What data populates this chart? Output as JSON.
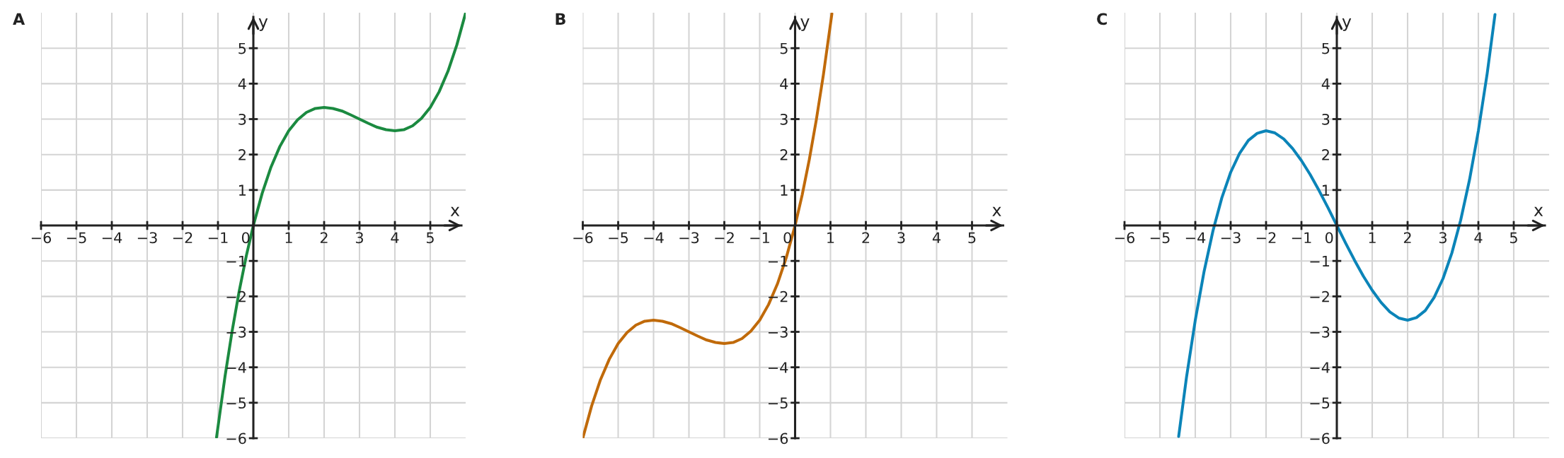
{
  "chart_data": [
    {
      "type": "line",
      "title": "A",
      "xlabel": "x",
      "ylabel": "y",
      "xlim": [
        -6,
        6
      ],
      "ylim": [
        -6,
        6
      ],
      "xticks": [
        {
          "value": -6,
          "label": "−6"
        },
        {
          "value": -5,
          "label": "−5"
        },
        {
          "value": -4,
          "label": "−4"
        },
        {
          "value": -3,
          "label": "−3"
        },
        {
          "value": -2,
          "label": "−2"
        },
        {
          "value": -1,
          "label": "−1"
        },
        0,
        1,
        2,
        3,
        4,
        5
      ],
      "yticks": [
        {
          "value": -6,
          "label": "−6"
        },
        {
          "value": -5,
          "label": "−5"
        },
        {
          "value": -4,
          "label": "−4"
        },
        {
          "value": -3,
          "label": "−3"
        },
        {
          "value": -2,
          "label": "−2"
        },
        {
          "value": -1,
          "label": "−1"
        },
        1,
        2,
        3,
        4,
        5
      ],
      "grid": true,
      "series": [
        {
          "color": "#1b8a40",
          "x": [
            -1.04,
            -0.8,
            -0.6,
            -0.4,
            -0.2,
            0,
            0.25,
            0.5,
            0.75,
            1,
            1.25,
            1.5,
            1.75,
            2,
            2.25,
            2.5,
            2.75,
            3,
            3.25,
            3.5,
            3.75,
            4,
            4.25,
            4.5,
            4.75,
            5,
            5.25,
            5.5,
            5.75,
            6
          ],
          "values": [
            -5.97,
            -4.25,
            -2.98,
            -1.85,
            -0.86,
            0,
            0.91,
            1.65,
            2.23,
            2.67,
            2.98,
            3.19,
            3.3,
            3.33,
            3.3,
            3.23,
            3.12,
            3.0,
            2.88,
            2.77,
            2.7,
            2.67,
            2.7,
            2.81,
            3.02,
            3.33,
            3.77,
            4.35,
            5.09,
            6
          ]
        }
      ]
    },
    {
      "type": "line",
      "title": "B",
      "xlabel": "x",
      "ylabel": "y",
      "xlim": [
        -6,
        6
      ],
      "ylim": [
        -6,
        6
      ],
      "xticks": [
        {
          "value": -6,
          "label": "−6"
        },
        {
          "value": -5,
          "label": "−5"
        },
        {
          "value": -4,
          "label": "−4"
        },
        {
          "value": -3,
          "label": "−3"
        },
        {
          "value": -2,
          "label": "−2"
        },
        {
          "value": -1,
          "label": "−1"
        },
        0,
        1,
        2,
        3,
        4,
        5
      ],
      "yticks": [
        {
          "value": -6,
          "label": "−6"
        },
        {
          "value": -5,
          "label": "−5"
        },
        {
          "value": -4,
          "label": "−4"
        },
        {
          "value": -3,
          "label": "−3"
        },
        {
          "value": -2,
          "label": "−2"
        },
        {
          "value": -1,
          "label": "−1"
        },
        1,
        2,
        3,
        4,
        5
      ],
      "grid": true,
      "series": [
        {
          "color": "#c06a0a",
          "x": [
            -6,
            -5.75,
            -5.5,
            -5.25,
            -5,
            -4.75,
            -4.5,
            -4.25,
            -4,
            -3.75,
            -3.5,
            -3.25,
            -3,
            -2.75,
            -2.5,
            -2.25,
            -2,
            -1.75,
            -1.5,
            -1.25,
            -1,
            -0.75,
            -0.5,
            -0.25,
            0,
            0.2,
            0.4,
            0.6,
            0.8,
            1.04
          ],
          "values": [
            -6,
            -5.09,
            -4.35,
            -3.77,
            -3.33,
            -3.02,
            -2.81,
            -2.7,
            -2.67,
            -2.7,
            -2.77,
            -2.88,
            -3.0,
            -3.12,
            -3.23,
            -3.3,
            -3.33,
            -3.3,
            -3.19,
            -2.98,
            -2.67,
            -2.23,
            -1.65,
            -0.91,
            0,
            0.86,
            1.85,
            2.98,
            4.25,
            5.97
          ]
        }
      ]
    },
    {
      "type": "line",
      "title": "C",
      "xlabel": "x",
      "ylabel": "y",
      "xlim": [
        -6,
        6
      ],
      "ylim": [
        -6,
        6
      ],
      "xticks": [
        {
          "value": -6,
          "label": "−6"
        },
        {
          "value": -5,
          "label": "−5"
        },
        {
          "value": -4,
          "label": "−4"
        },
        {
          "value": -3,
          "label": "−3"
        },
        {
          "value": -2,
          "label": "−2"
        },
        {
          "value": -1,
          "label": "−1"
        },
        0,
        1,
        2,
        3,
        4,
        5
      ],
      "yticks": [
        {
          "value": -6,
          "label": "−6"
        },
        {
          "value": -5,
          "label": "−5"
        },
        {
          "value": -4,
          "label": "−4"
        },
        {
          "value": -3,
          "label": "−3"
        },
        {
          "value": -2,
          "label": "−2"
        },
        {
          "value": -1,
          "label": "−1"
        },
        1,
        2,
        3,
        4,
        5
      ],
      "grid": true,
      "series": [
        {
          "color": "#0b84b8",
          "x": [
            -4.47,
            -4.25,
            -4,
            -3.75,
            -3.5,
            -3.25,
            -3,
            -2.75,
            -2.5,
            -2.25,
            -2,
            -1.75,
            -1.5,
            -1.25,
            -1,
            -0.75,
            -0.5,
            -0.25,
            0,
            0.25,
            0.5,
            0.75,
            1,
            1.25,
            1.5,
            1.75,
            2,
            2.25,
            2.5,
            2.75,
            3,
            3.25,
            3.5,
            3.75,
            4,
            4.25,
            4.47
          ],
          "values": [
            -5.95,
            -4.29,
            -2.67,
            -1.29,
            -0.15,
            0.78,
            1.5,
            2.03,
            2.4,
            2.6,
            2.67,
            2.61,
            2.44,
            2.17,
            1.83,
            1.43,
            0.98,
            0.5,
            0,
            -0.5,
            -0.98,
            -1.43,
            -1.83,
            -2.17,
            -2.44,
            -2.61,
            -2.67,
            -2.6,
            -2.4,
            -2.03,
            -1.5,
            -0.78,
            0.15,
            1.29,
            2.67,
            4.29,
            5.95
          ]
        }
      ]
    }
  ]
}
